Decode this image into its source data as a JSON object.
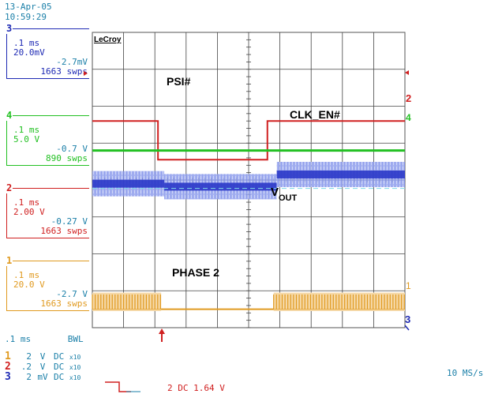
{
  "timestamp": {
    "date": "13-Apr-05",
    "time": "10:59:29"
  },
  "brand": "LeCroy",
  "channels": [
    {
      "num": "3",
      "color": "#1e2ab4",
      "timebase": ".1 ms",
      "scale": "20.0mV",
      "offset": "-2.7mV",
      "sweeps": "1663 swps"
    },
    {
      "num": "4",
      "color": "#22c022",
      "timebase": ".1 ms",
      "scale": "5.0 V",
      "offset": "-0.7 V",
      "sweeps": "890 swps"
    },
    {
      "num": "2",
      "color": "#d02020",
      "timebase": ".1 ms",
      "scale": "2.00 V",
      "offset": "-0.27 V",
      "sweeps": "1663 swps"
    },
    {
      "num": "1",
      "color": "#e09a20",
      "timebase": ".1 ms",
      "scale": "20.0 V",
      "offset": "-2.7 V",
      "sweeps": "1663 swps"
    }
  ],
  "trace_labels": {
    "psi": "PSI#",
    "clk_en": "CLK_EN#",
    "vout_main": "V",
    "vout_sub": "OUT",
    "phase2": "PHASE 2"
  },
  "footer": {
    "timebase": ".1 ms",
    "bwl": "BWL",
    "rows": [
      {
        "num": "1",
        "scale": "2",
        "unit": "V",
        "coupling": "DC",
        "probe": "x10"
      },
      {
        "num": "2",
        "scale": ".2",
        "unit": "V",
        "coupling": "DC",
        "probe": "x10"
      },
      {
        "num": "3",
        "scale": "2",
        "unit": "mV",
        "coupling": "DC",
        "probe": "x10"
      }
    ],
    "trigger": "2 DC 1.64 V",
    "sample_rate": "10 MS/s"
  },
  "colors": {
    "grid": "#444444",
    "accent": "#1a7fa8"
  },
  "chart_data": {
    "type": "line",
    "title": "",
    "xlabel": "",
    "ylabel": "",
    "x_divisions": 10,
    "y_divisions": 8,
    "series": [
      {
        "name": "PSI#",
        "channel": "2",
        "segments": [
          [
            0,
            2.4
          ],
          [
            0.21,
            2.4
          ],
          [
            0.21,
            3.45
          ],
          [
            0.56,
            3.45
          ],
          [
            0.56,
            2.4
          ],
          [
            1.0,
            2.4
          ]
        ]
      },
      {
        "name": "CLK_EN#",
        "channel": "4",
        "segments": [
          [
            0,
            3.2
          ],
          [
            1.0,
            3.2
          ]
        ]
      },
      {
        "name": "VOUT",
        "channel": "3",
        "segments": [
          [
            0,
            4.1
          ],
          [
            0.23,
            4.1
          ],
          [
            0.23,
            4.18
          ],
          [
            0.59,
            4.18
          ],
          [
            0.59,
            3.85
          ],
          [
            1.0,
            3.85
          ]
        ]
      },
      {
        "name": "PHASE 2",
        "channel": "1",
        "switching": [
          [
            0,
            0.22
          ],
          [
            0.58,
            1.0
          ]
        ],
        "idle_level": 7.5
      }
    ]
  }
}
